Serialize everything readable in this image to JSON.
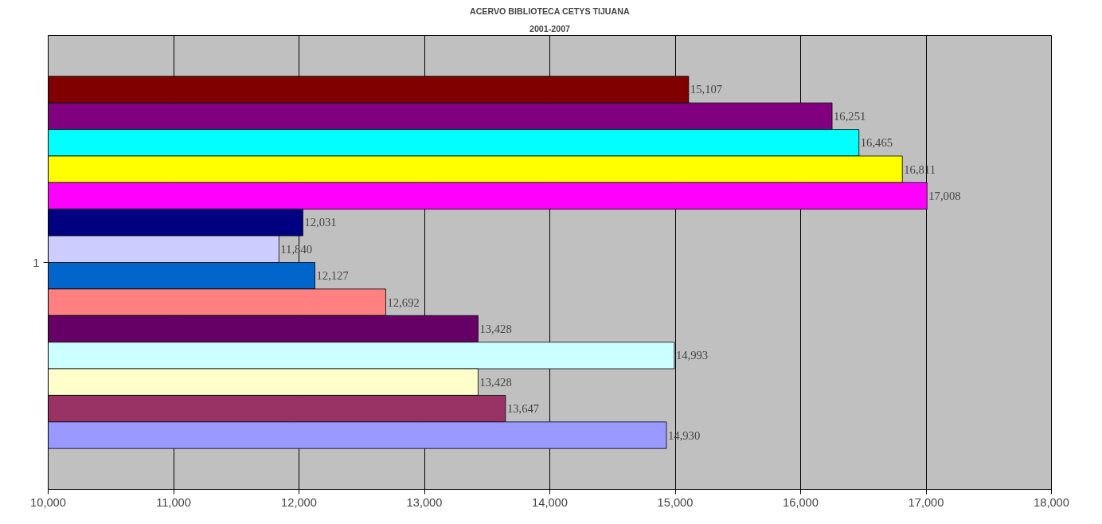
{
  "chart_data": {
    "type": "bar",
    "orientation": "horizontal",
    "title": "ACERVO BIBLIOTECA CETYS TIJUANA",
    "subtitle": "2001-2007",
    "categories": [
      "1"
    ],
    "series": [
      {
        "color": "#800000",
        "values": [
          15107
        ],
        "value_labels": [
          "15,107"
        ]
      },
      {
        "color": "#800080",
        "values": [
          16251
        ],
        "value_labels": [
          "16,251"
        ]
      },
      {
        "color": "#00ffff",
        "values": [
          16465
        ],
        "value_labels": [
          "16,465"
        ]
      },
      {
        "color": "#ffff00",
        "values": [
          16811
        ],
        "value_labels": [
          "16,811"
        ]
      },
      {
        "color": "#ff00ff",
        "values": [
          17008
        ],
        "value_labels": [
          "17,008"
        ]
      },
      {
        "color": "#000080",
        "values": [
          12031
        ],
        "value_labels": [
          "12,031"
        ]
      },
      {
        "color": "#ccccff",
        "values": [
          11840
        ],
        "value_labels": [
          "11,840"
        ]
      },
      {
        "color": "#0066cc",
        "values": [
          12127
        ],
        "value_labels": [
          "12,127"
        ]
      },
      {
        "color": "#ff8080",
        "values": [
          12692
        ],
        "value_labels": [
          "12,692"
        ]
      },
      {
        "color": "#660066",
        "values": [
          13428
        ],
        "value_labels": [
          "13,428"
        ]
      },
      {
        "color": "#ccffff",
        "values": [
          14993
        ],
        "value_labels": [
          "14,993"
        ]
      },
      {
        "color": "#ffffcc",
        "values": [
          13428
        ],
        "value_labels": [
          "13,428"
        ]
      },
      {
        "color": "#993366",
        "values": [
          13647
        ],
        "value_labels": [
          "13,647"
        ]
      },
      {
        "color": "#9999ff",
        "values": [
          14930
        ],
        "value_labels": [
          "14,930"
        ]
      }
    ],
    "xlim": [
      10000,
      18000
    ],
    "xticks": [
      {
        "value": 10000,
        "label": "10,000"
      },
      {
        "value": 11000,
        "label": "11,000"
      },
      {
        "value": 12000,
        "label": "12,000"
      },
      {
        "value": 13000,
        "label": "13,000"
      },
      {
        "value": 14000,
        "label": "14,000"
      },
      {
        "value": 15000,
        "label": "15,000"
      },
      {
        "value": 16000,
        "label": "16,000"
      },
      {
        "value": 17000,
        "label": "17,000"
      },
      {
        "value": 18000,
        "label": "18,000"
      }
    ],
    "grid": "x"
  }
}
